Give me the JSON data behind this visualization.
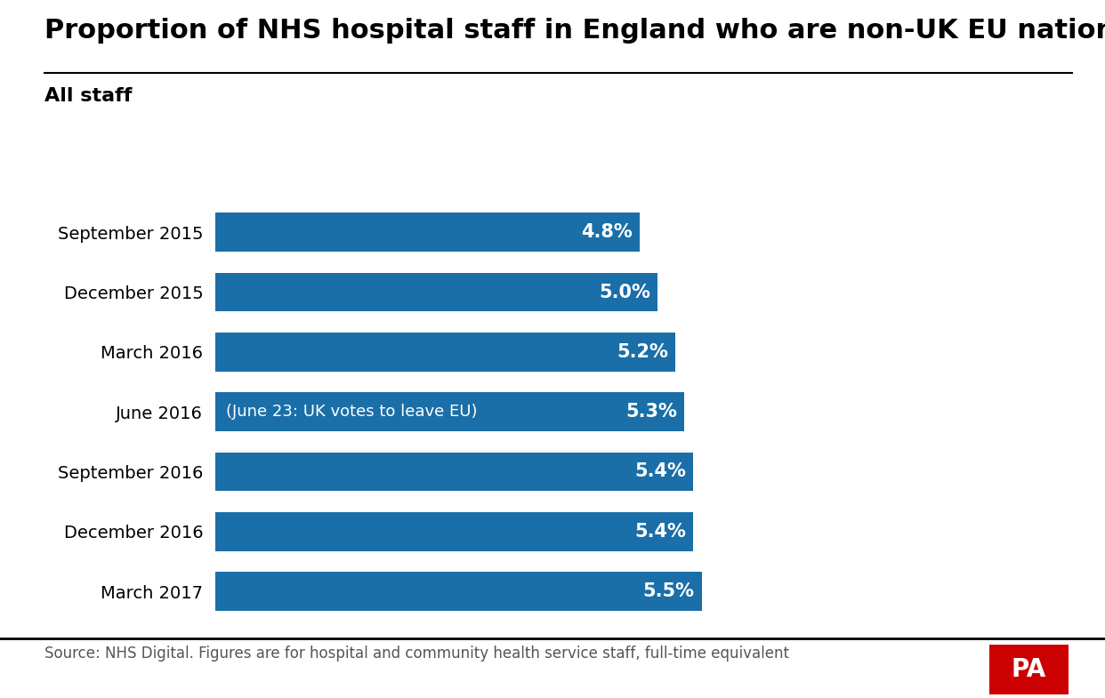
{
  "title": "Proportion of NHS hospital staff in England who are non-UK EU nationals",
  "subtitle": "All staff",
  "categories": [
    "September 2015",
    "December 2015",
    "March 2016",
    "June 2016",
    "September 2016",
    "December 2016",
    "March 2017"
  ],
  "values": [
    4.8,
    5.0,
    5.2,
    5.3,
    5.4,
    5.4,
    5.5
  ],
  "labels": [
    "4.8%",
    "5.0%",
    "5.2%",
    "5.3%",
    "5.4%",
    "5.4%",
    "5.5%"
  ],
  "bar_color": "#1a6fa8",
  "annotation_bar_index": 3,
  "annotation_text": "(June 23: UK votes to leave EU)",
  "source_text": "Source: NHS Digital. Figures are for hospital and community health service staff, full-time equivalent",
  "background_color": "#ffffff",
  "title_fontsize": 22,
  "subtitle_fontsize": 16,
  "label_fontsize": 15,
  "category_fontsize": 14,
  "source_fontsize": 12,
  "xlim": [
    0,
    9.0
  ],
  "bar_height": 0.65,
  "pa_logo_color": "#cc0000",
  "pa_logo_text": "PA"
}
